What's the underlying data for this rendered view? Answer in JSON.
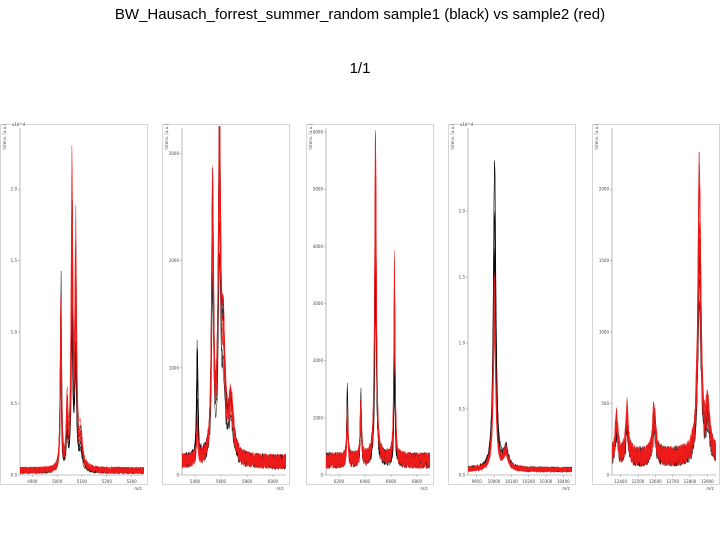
{
  "title": "BW_Hausach_forrest_summer_random sample1 (black) vs sample2 (red)",
  "page": "1/1",
  "colors": {
    "sample1": "#000000",
    "sample2": "#ee1c1c",
    "axis": "#888888",
    "panel_border": "#bbbbbb"
  },
  "chart_data": [
    {
      "type": "line",
      "ylabel": "Intens. [a.u.]",
      "y_exponent": "x10^4",
      "xlabel": "m/z",
      "xlim": [
        4800,
        5300
      ],
      "ylim": [
        0,
        2.4
      ],
      "x_ticks": [
        "4900",
        "5000",
        "5100",
        "5200",
        "5300"
      ],
      "y_ticks": [
        {
          "v": 0.0,
          "label": "0.0"
        },
        {
          "v": 0.5,
          "label": "0.5"
        },
        {
          "v": 1.0,
          "label": "1.0"
        },
        {
          "v": 1.5,
          "label": "1.5"
        },
        {
          "v": 2.0,
          "label": "2.0"
        }
      ],
      "baseline": 0.03,
      "noise": 0.03,
      "peaks": [
        {
          "mz": 4965,
          "h_black": 1.3,
          "h_red": 1.25,
          "w": 3
        },
        {
          "mz": 4990,
          "h_black": 0.4,
          "h_red": 0.45,
          "w": 4
        },
        {
          "mz": 5010,
          "h_black": 1.7,
          "h_red": 2.1,
          "w": 4
        },
        {
          "mz": 5025,
          "h_black": 1.3,
          "h_red": 1.6,
          "w": 4
        },
        {
          "mz": 5045,
          "h_black": 0.2,
          "h_red": 0.25,
          "w": 8
        }
      ],
      "series": [
        {
          "name": "sample1 (black)",
          "group": "black",
          "count": 7
        },
        {
          "name": "sample2 (red)",
          "group": "red",
          "count": 9
        }
      ]
    },
    {
      "type": "line",
      "ylabel": "Intens. [a.u.]",
      "y_exponent": "",
      "xlabel": "m/z",
      "xlim": [
        5380,
        6060
      ],
      "ylim": [
        0,
        3200
      ],
      "x_ticks": [
        "5400",
        "5600",
        "5800",
        "6000"
      ],
      "y_ticks": [
        {
          "v": 0,
          "label": "0"
        },
        {
          "v": 1000,
          "label": "1000"
        },
        {
          "v": 2000,
          "label": "2000"
        },
        {
          "v": 3000,
          "label": "3000"
        }
      ],
      "baseline": 120,
      "noise": 90,
      "peaks": [
        {
          "mz": 5480,
          "h_black": 1100,
          "h_red": 350,
          "w": 5
        },
        {
          "mz": 5580,
          "h_black": 2500,
          "h_red": 2400,
          "w": 8
        },
        {
          "mz": 5625,
          "h_black": 3000,
          "h_red": 2800,
          "w": 9
        },
        {
          "mz": 5650,
          "h_black": 1000,
          "h_red": 1000,
          "w": 14
        },
        {
          "mz": 5700,
          "h_black": 500,
          "h_red": 500,
          "w": 20
        }
      ],
      "series": [
        {
          "name": "sample1 (black)",
          "group": "black",
          "count": 7
        },
        {
          "name": "sample2 (red)",
          "group": "red",
          "count": 9
        }
      ]
    },
    {
      "type": "line",
      "ylabel": "Intens. [a.u.]",
      "y_exponent": "",
      "xlabel": "m/z",
      "xlim": [
        6100,
        6950
      ],
      "ylim": [
        0,
        6000
      ],
      "x_ticks": [
        "6200",
        "6400",
        "6600",
        "6800"
      ],
      "y_ticks": [
        {
          "v": 0,
          "label": "0"
        },
        {
          "v": 1000,
          "label": "1000"
        },
        {
          "v": 2000,
          "label": "2000"
        },
        {
          "v": 3000,
          "label": "3000"
        },
        {
          "v": 4000,
          "label": "4000"
        },
        {
          "v": 5000,
          "label": "5000"
        },
        {
          "v": 6000,
          "label": "6000"
        }
      ],
      "baseline": 250,
      "noise": 180,
      "peaks": [
        {
          "mz": 6275,
          "h_black": 1300,
          "h_red": 900,
          "w": 6
        },
        {
          "mz": 6385,
          "h_black": 1200,
          "h_red": 1000,
          "w": 6
        },
        {
          "mz": 6505,
          "h_black": 5300,
          "h_red": 5700,
          "w": 8
        },
        {
          "mz": 6660,
          "h_black": 2500,
          "h_red": 3500,
          "w": 6
        }
      ],
      "series": [
        {
          "name": "sample1 (black)",
          "group": "black",
          "count": 7
        },
        {
          "name": "sample2 (red)",
          "group": "red",
          "count": 9
        }
      ]
    },
    {
      "type": "line",
      "ylabel": "Intens. [a.u.]",
      "y_exponent": "x10^4",
      "xlabel": "m/z",
      "xlim": [
        9900,
        10450
      ],
      "ylim": [
        0,
        2.6
      ],
      "x_ticks": [
        "9950",
        "10000",
        "10100",
        "10200",
        "10300",
        "10400"
      ],
      "y_ticks": [
        {
          "v": 0.0,
          "label": "0.0"
        },
        {
          "v": 0.5,
          "label": "0.5"
        },
        {
          "v": 1.0,
          "label": "1.0"
        },
        {
          "v": 1.5,
          "label": "1.5"
        },
        {
          "v": 2.0,
          "label": "2.0"
        }
      ],
      "baseline": 0.04,
      "noise": 0.025,
      "peaks": [
        {
          "mz": 10040,
          "h_black": 2.3,
          "h_red": 1.5,
          "w": 8
        },
        {
          "mz": 10100,
          "h_black": 0.15,
          "h_red": 0.15,
          "w": 15
        }
      ],
      "series": [
        {
          "name": "sample1 (black)",
          "group": "black",
          "count": 7
        },
        {
          "name": "sample2 (red)",
          "group": "red",
          "count": 9
        }
      ]
    },
    {
      "type": "line",
      "ylabel": "Intens. [a.u.]",
      "y_exponent": "",
      "xlabel": "m/z",
      "xlim": [
        12300,
        12990
      ],
      "ylim": [
        0,
        2400
      ],
      "x_ticks": [
        "12400",
        "12500",
        "12600",
        "12700",
        "12800",
        "12900"
      ],
      "y_ticks": [
        {
          "v": 0,
          "label": "0"
        },
        {
          "v": 500,
          "label": "500"
        },
        {
          "v": 1000,
          "label": "1000"
        },
        {
          "v": 1500,
          "label": "1500"
        },
        {
          "v": 2000,
          "label": "2000"
        }
      ],
      "baseline": 120,
      "noise": 90,
      "peaks": [
        {
          "mz": 12330,
          "h_black": 250,
          "h_red": 300,
          "w": 10
        },
        {
          "mz": 12400,
          "h_black": 300,
          "h_red": 350,
          "w": 10
        },
        {
          "mz": 12580,
          "h_black": 300,
          "h_red": 350,
          "w": 12
        },
        {
          "mz": 12880,
          "h_black": 1800,
          "h_red": 2000,
          "w": 12
        },
        {
          "mz": 12935,
          "h_black": 300,
          "h_red": 350,
          "w": 15
        }
      ],
      "series": [
        {
          "name": "sample1 (black)",
          "group": "black",
          "count": 7
        },
        {
          "name": "sample2 (red)",
          "group": "red",
          "count": 9
        }
      ]
    }
  ]
}
